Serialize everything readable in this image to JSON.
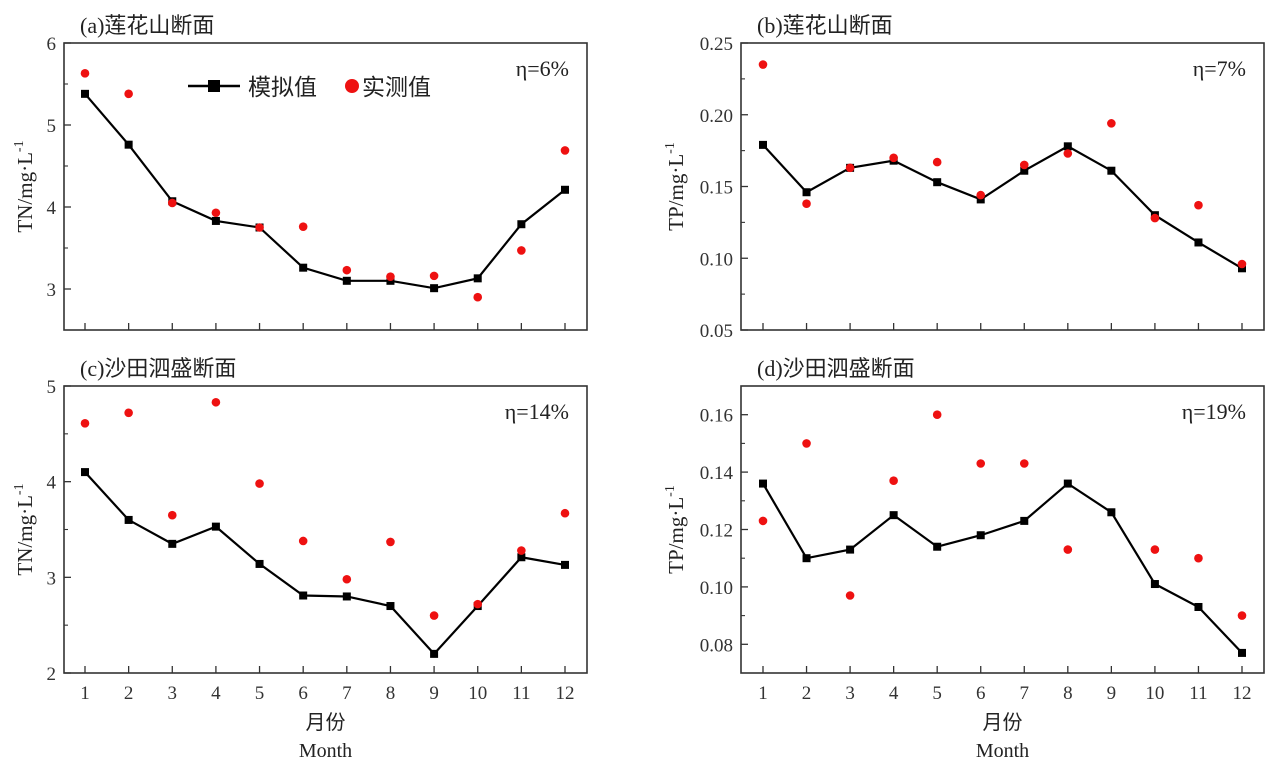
{
  "chart_data": [
    {
      "type": "line",
      "panel": "a",
      "title": "(a)莲花山断面",
      "ylabel": "TN/mg·L",
      "ylabel_sup": "-1",
      "xlabel": "",
      "annotation_eta": "η=6%",
      "ylim": [
        2.5,
        6
      ],
      "yticks": [
        3,
        4,
        5,
        6
      ],
      "yticklabels": [
        "3",
        "4",
        "5",
        "6"
      ],
      "yminor": [
        3.5,
        4.5,
        5.5
      ],
      "x": [
        1,
        2,
        3,
        4,
        5,
        6,
        7,
        8,
        9,
        10,
        11,
        12
      ],
      "xticklabels_visible": false,
      "legend": {
        "position": "top-center",
        "entries": [
          "模拟值",
          "实测值"
        ]
      },
      "series": [
        {
          "name": "模拟值",
          "style": "line-square",
          "values": [
            5.38,
            4.76,
            4.07,
            3.83,
            3.75,
            3.26,
            3.1,
            3.1,
            3.01,
            3.13,
            3.79,
            4.21
          ]
        },
        {
          "name": "实测值",
          "style": "red-dot",
          "values": [
            5.63,
            5.38,
            4.05,
            3.93,
            3.75,
            3.76,
            3.23,
            3.15,
            3.16,
            2.9,
            3.47,
            4.69
          ]
        }
      ]
    },
    {
      "type": "line",
      "panel": "b",
      "title": "(b)莲花山断面",
      "ylabel": "TP/mg·L",
      "ylabel_sup": "-1",
      "xlabel": "",
      "annotation_eta": "η=7%",
      "ylim": [
        0.05,
        0.25
      ],
      "yticks": [
        0.05,
        0.1,
        0.15,
        0.2,
        0.25
      ],
      "yticklabels": [
        "0.05",
        "0.10",
        "0.15",
        "0.20",
        "0.25"
      ],
      "yminor": [
        0.075,
        0.125,
        0.175,
        0.225
      ],
      "x": [
        1,
        2,
        3,
        4,
        5,
        6,
        7,
        8,
        9,
        10,
        11,
        12
      ],
      "xticklabels_visible": false,
      "series": [
        {
          "name": "模拟值",
          "style": "line-square",
          "values": [
            0.179,
            0.146,
            0.163,
            0.168,
            0.153,
            0.141,
            0.161,
            0.178,
            0.161,
            0.13,
            0.111,
            0.093
          ]
        },
        {
          "name": "实测值",
          "style": "red-dot",
          "values": [
            0.235,
            0.138,
            0.163,
            0.17,
            0.167,
            0.144,
            0.165,
            0.173,
            0.194,
            0.128,
            0.137,
            0.096
          ]
        }
      ]
    },
    {
      "type": "line",
      "panel": "c",
      "title": "(c)沙田泗盛断面",
      "ylabel": "TN/mg·L",
      "ylabel_sup": "-1",
      "xlabel": "月份",
      "xlabel_en": "Month",
      "annotation_eta": "η=14%",
      "ylim": [
        2,
        5
      ],
      "yticks": [
        2,
        3,
        4,
        5
      ],
      "yticklabels": [
        "2",
        "3",
        "4",
        "5"
      ],
      "yminor": [
        2.5,
        3.5,
        4.5
      ],
      "x": [
        1,
        2,
        3,
        4,
        5,
        6,
        7,
        8,
        9,
        10,
        11,
        12
      ],
      "xticklabels_visible": true,
      "xticklabels": [
        "1",
        "2",
        "3",
        "4",
        "5",
        "6",
        "7",
        "8",
        "9",
        "10",
        "11",
        "12"
      ],
      "series": [
        {
          "name": "模拟值",
          "style": "line-square",
          "values": [
            4.1,
            3.6,
            3.35,
            3.53,
            3.14,
            2.81,
            2.8,
            2.7,
            2.2,
            2.7,
            3.21,
            3.13
          ]
        },
        {
          "name": "实测值",
          "style": "red-dot",
          "values": [
            4.61,
            4.72,
            3.65,
            4.83,
            3.98,
            3.38,
            2.98,
            3.37,
            2.6,
            2.72,
            3.28,
            3.67
          ]
        }
      ]
    },
    {
      "type": "line",
      "panel": "d",
      "title": "(d)沙田泗盛断面",
      "ylabel": "TP/mg·L",
      "ylabel_sup": "-1",
      "xlabel": "月份",
      "xlabel_en": "Month",
      "annotation_eta": "η=19%",
      "ylim": [
        0.07,
        0.17
      ],
      "yticks": [
        0.08,
        0.1,
        0.12,
        0.14,
        0.16
      ],
      "yticklabels": [
        "0.08",
        "0.10",
        "0.12",
        "0.14",
        "0.16"
      ],
      "yminor": [
        0.09,
        0.11,
        0.13,
        0.15
      ],
      "x": [
        1,
        2,
        3,
        4,
        5,
        6,
        7,
        8,
        9,
        10,
        11,
        12
      ],
      "xticklabels_visible": true,
      "xticklabels": [
        "1",
        "2",
        "3",
        "4",
        "5",
        "6",
        "7",
        "8",
        "9",
        "10",
        "11",
        "12"
      ],
      "series": [
        {
          "name": "模拟值",
          "style": "line-square",
          "values": [
            0.136,
            0.11,
            0.113,
            0.125,
            0.114,
            0.118,
            0.123,
            0.136,
            0.126,
            0.101,
            0.093,
            0.077
          ]
        },
        {
          "name": "实测值",
          "style": "red-dot",
          "values": [
            0.123,
            0.15,
            0.097,
            0.137,
            0.16,
            0.143,
            0.143,
            0.113,
            null,
            0.113,
            0.11,
            0.09
          ]
        }
      ]
    }
  ],
  "colors": {
    "simulated": "#000000",
    "observed": "#ee1111",
    "axis": "#333333"
  }
}
